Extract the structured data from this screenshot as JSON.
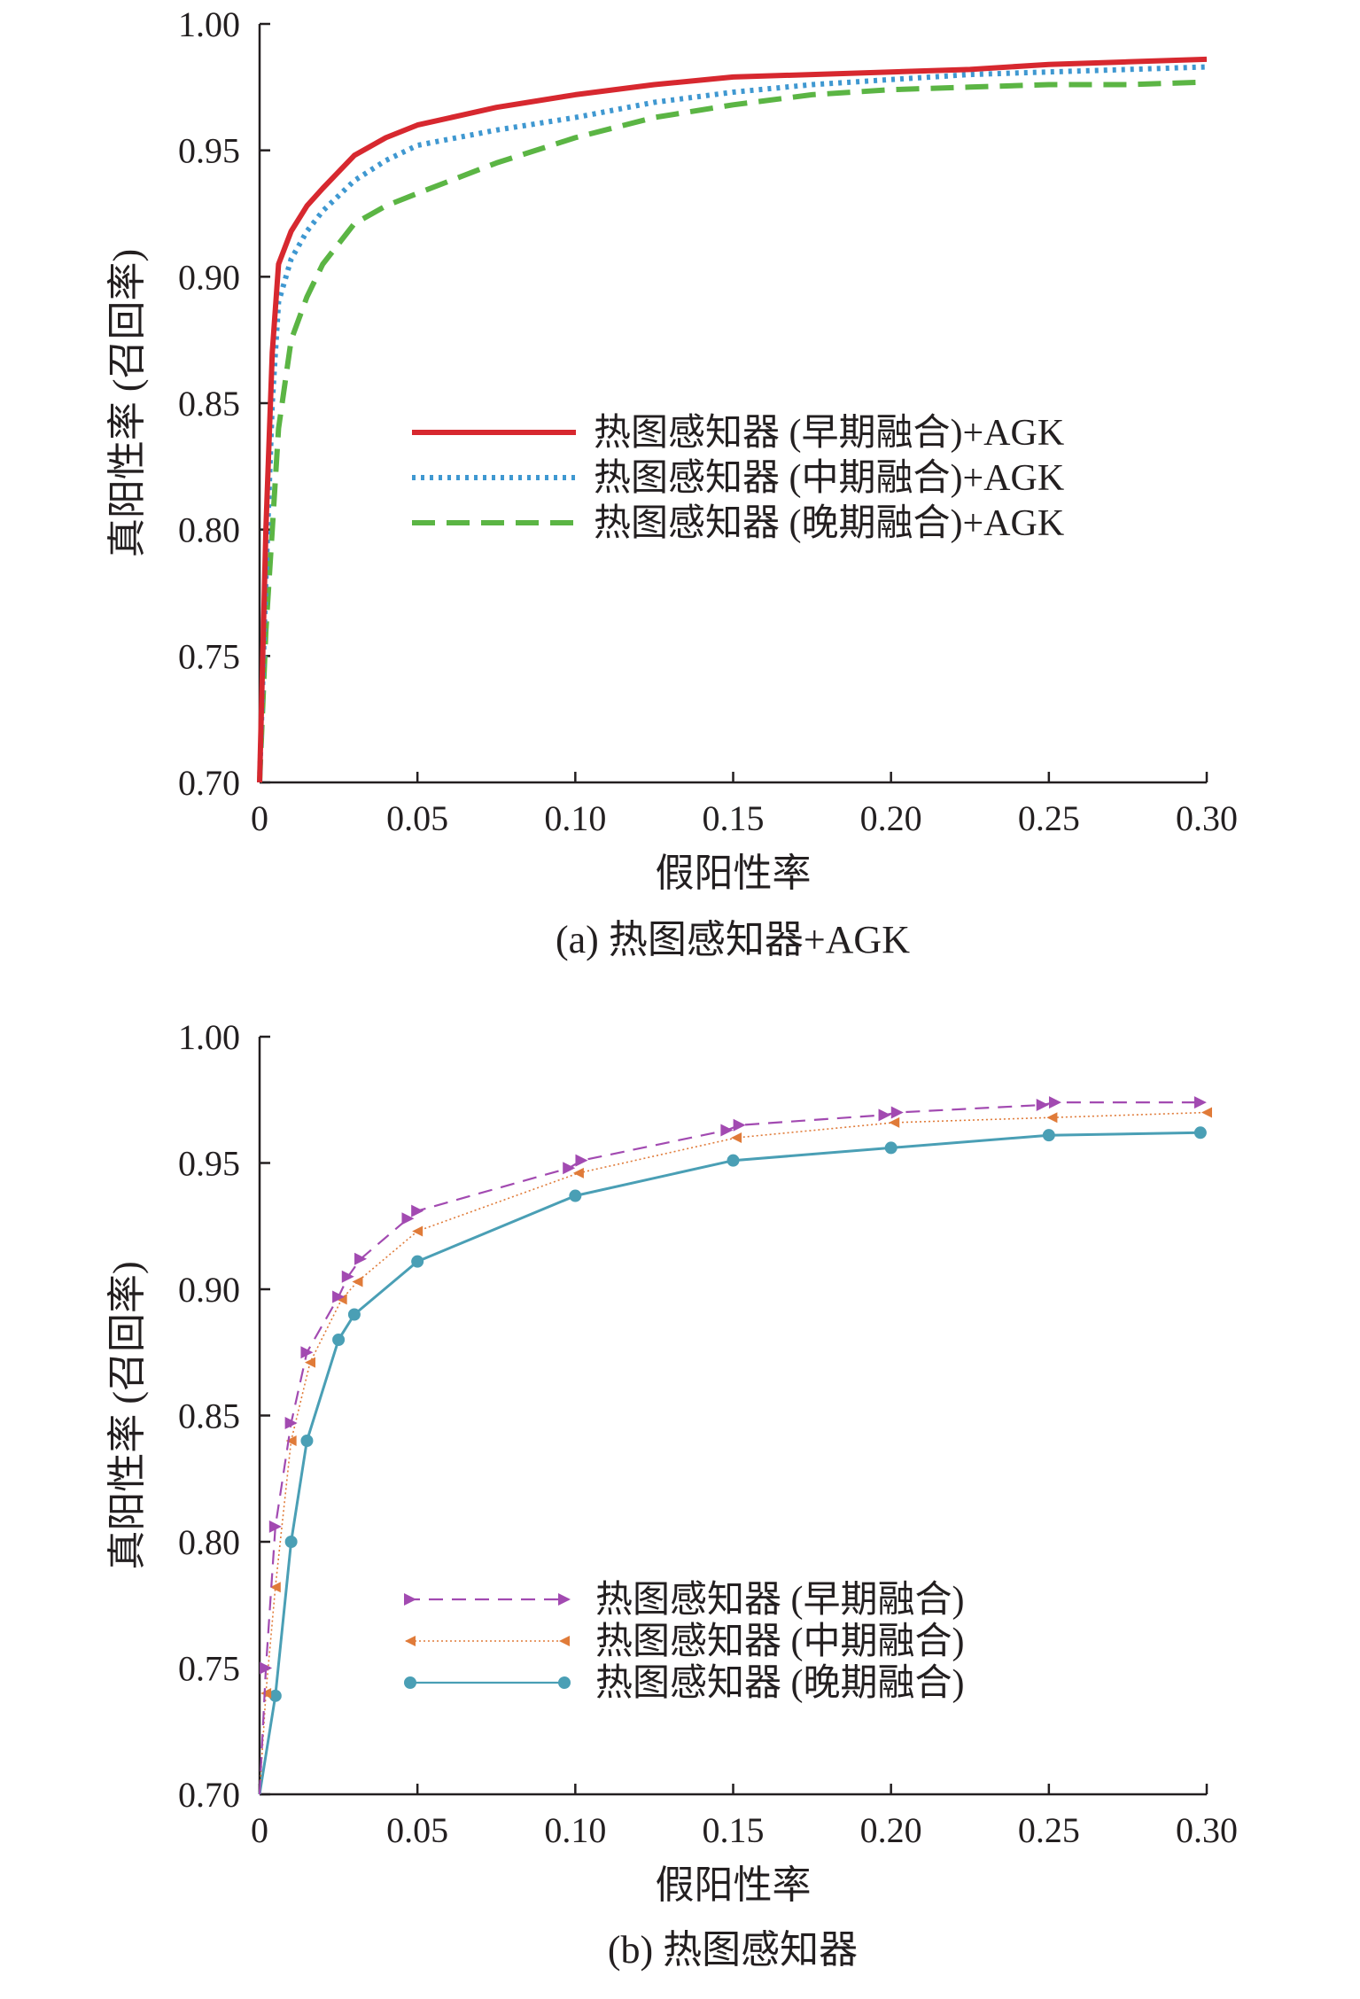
{
  "chart_data": [
    {
      "type": "line",
      "caption": "(a) 热图感知器+AGK",
      "xlabel": "假阳性率",
      "ylabel": "真阳性率 (召回率)",
      "xlim": [
        0,
        0.3
      ],
      "ylim": [
        0.7,
        1.0
      ],
      "xticks": [
        "0",
        "0.05",
        "0.10",
        "0.15",
        "0.20",
        "0.25",
        "0.30"
      ],
      "yticks": [
        "0.70",
        "0.75",
        "0.80",
        "0.85",
        "0.90",
        "0.95",
        "1.00"
      ],
      "legend_position": "center-right",
      "grid": false,
      "series": [
        {
          "name": "热图感知器 (早期融合)+AGK",
          "color": "#d7282f",
          "style": "solid",
          "x": [
            0,
            0.002,
            0.004,
            0.006,
            0.01,
            0.015,
            0.02,
            0.03,
            0.04,
            0.05,
            0.075,
            0.1,
            0.125,
            0.15,
            0.175,
            0.2,
            0.225,
            0.25,
            0.275,
            0.3
          ],
          "y": [
            0.7,
            0.8,
            0.87,
            0.905,
            0.918,
            0.928,
            0.935,
            0.948,
            0.955,
            0.96,
            0.967,
            0.972,
            0.976,
            0.979,
            0.98,
            0.981,
            0.982,
            0.984,
            0.985,
            0.986
          ]
        },
        {
          "name": "热图感知器 (中期融合)+AGK",
          "color": "#3f98d1",
          "style": "dotted",
          "x": [
            0,
            0.002,
            0.004,
            0.006,
            0.01,
            0.015,
            0.02,
            0.03,
            0.04,
            0.05,
            0.075,
            0.1,
            0.125,
            0.15,
            0.175,
            0.2,
            0.225,
            0.25,
            0.275,
            0.3
          ],
          "y": [
            0.7,
            0.78,
            0.85,
            0.89,
            0.907,
            0.918,
            0.926,
            0.938,
            0.946,
            0.952,
            0.958,
            0.963,
            0.969,
            0.973,
            0.976,
            0.978,
            0.98,
            0.981,
            0.982,
            0.983
          ]
        },
        {
          "name": "热图感知器 (晚期融合)+AGK",
          "color": "#5bb544",
          "style": "dashed",
          "x": [
            0,
            0.002,
            0.004,
            0.006,
            0.01,
            0.015,
            0.02,
            0.03,
            0.04,
            0.05,
            0.075,
            0.1,
            0.125,
            0.15,
            0.175,
            0.2,
            0.225,
            0.25,
            0.275,
            0.3
          ],
          "y": [
            0.7,
            0.76,
            0.8,
            0.84,
            0.875,
            0.892,
            0.905,
            0.921,
            0.928,
            0.933,
            0.945,
            0.955,
            0.963,
            0.968,
            0.972,
            0.974,
            0.975,
            0.976,
            0.976,
            0.977
          ]
        }
      ]
    },
    {
      "type": "line",
      "caption": "(b) 热图感知器",
      "xlabel": "假阳性率",
      "ylabel": "真阳性率 (召回率)",
      "xlim": [
        0,
        0.3
      ],
      "ylim": [
        0.7,
        1.0
      ],
      "xticks": [
        "0",
        "0.05",
        "0.10",
        "0.15",
        "0.20",
        "0.25",
        "0.30"
      ],
      "yticks": [
        "0.70",
        "0.75",
        "0.80",
        "0.85",
        "0.90",
        "0.95",
        "1.00"
      ],
      "legend_position": "lower-center",
      "grid": false,
      "series": [
        {
          "name": "热图感知器 (早期融合)",
          "color": "#a24ab1",
          "style": "dashed",
          "marker": "triangle-right",
          "x": [
            0,
            0.002,
            0.005,
            0.01,
            0.015,
            0.025,
            0.028,
            0.032,
            0.047,
            0.05,
            0.098,
            0.102,
            0.148,
            0.152,
            0.198,
            0.202,
            0.248,
            0.252,
            0.298
          ],
          "y": [
            0.7,
            0.75,
            0.806,
            0.847,
            0.875,
            0.897,
            0.905,
            0.912,
            0.928,
            0.931,
            0.948,
            0.951,
            0.963,
            0.965,
            0.969,
            0.97,
            0.973,
            0.974,
            0.974
          ]
        },
        {
          "name": "热图感知器 (中期融合)",
          "color": "#e07b39",
          "style": "dotted",
          "marker": "triangle-left",
          "x": [
            0,
            0.002,
            0.005,
            0.01,
            0.016,
            0.026,
            0.031,
            0.05,
            0.101,
            0.151,
            0.201,
            0.251,
            0.3
          ],
          "y": [
            0.7,
            0.74,
            0.782,
            0.84,
            0.871,
            0.896,
            0.903,
            0.923,
            0.946,
            0.96,
            0.966,
            0.968,
            0.97
          ]
        },
        {
          "name": "热图感知器 (晚期融合)",
          "color": "#4a9fb5",
          "style": "solid",
          "marker": "circle",
          "x": [
            0,
            0.005,
            0.01,
            0.015,
            0.025,
            0.03,
            0.05,
            0.1,
            0.15,
            0.2,
            0.25,
            0.298
          ],
          "y": [
            0.7,
            0.739,
            0.8,
            0.84,
            0.88,
            0.89,
            0.911,
            0.937,
            0.951,
            0.956,
            0.961,
            0.962
          ]
        }
      ]
    }
  ]
}
